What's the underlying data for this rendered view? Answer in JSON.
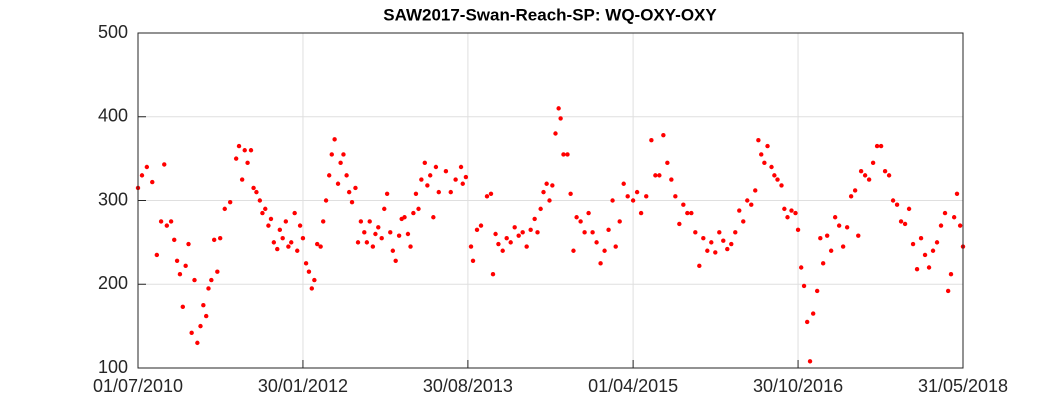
{
  "chart_data": {
    "type": "scatter",
    "title": "SAW2017-Swan-Reach-SP: WQ-OXY-OXY",
    "color": "#ff0000",
    "grid": true,
    "xlim": [
      "01/07/2010",
      "31/05/2018"
    ],
    "xticks": [
      "01/07/2010",
      "30/01/2012",
      "30/08/2013",
      "01/04/2015",
      "30/10/2016",
      "31/05/2018"
    ],
    "ylim": [
      100,
      500
    ],
    "yticks": [
      100,
      200,
      300,
      400,
      500
    ],
    "x": [
      "01/07/2010",
      "15/07/2010",
      "01/08/2010",
      "20/08/2010",
      "05/09/2010",
      "20/09/2010",
      "01/10/2010",
      "10/10/2010",
      "25/10/2010",
      "05/11/2010",
      "15/11/2010",
      "25/11/2010",
      "05/12/2010",
      "15/12/2010",
      "25/12/2010",
      "05/01/2011",
      "15/01/2011",
      "25/01/2011",
      "05/02/2011",
      "15/02/2011",
      "25/02/2011",
      "05/03/2011",
      "15/03/2011",
      "25/03/2011",
      "05/04/2011",
      "15/04/2011",
      "01/05/2011",
      "20/05/2011",
      "10/06/2011",
      "20/06/2011",
      "01/07/2011",
      "10/07/2011",
      "20/07/2011",
      "01/08/2011",
      "10/08/2011",
      "20/08/2011",
      "01/09/2011",
      "10/09/2011",
      "20/09/2011",
      "01/10/2011",
      "10/10/2011",
      "20/10/2011",
      "01/11/2011",
      "10/11/2011",
      "20/11/2011",
      "01/12/2011",
      "10/12/2011",
      "20/12/2011",
      "01/01/2012",
      "10/01/2012",
      "20/01/2012",
      "30/01/2012",
      "10/02/2012",
      "20/02/2012",
      "01/03/2012",
      "10/03/2012",
      "20/03/2012",
      "01/04/2012",
      "10/04/2012",
      "20/04/2012",
      "01/05/2012",
      "10/05/2012",
      "20/05/2012",
      "01/06/2012",
      "10/06/2012",
      "20/06/2012",
      "01/07/2012",
      "10/07/2012",
      "20/07/2012",
      "01/08/2012",
      "10/08/2012",
      "20/08/2012",
      "01/09/2012",
      "10/09/2012",
      "20/09/2012",
      "01/10/2012",
      "10/10/2012",
      "20/10/2012",
      "01/11/2012",
      "10/11/2012",
      "20/11/2012",
      "01/12/2012",
      "10/12/2012",
      "20/12/2012",
      "01/01/2013",
      "10/01/2013",
      "20/01/2013",
      "01/02/2013",
      "10/02/2013",
      "20/02/2013",
      "01/03/2013",
      "10/03/2013",
      "20/03/2013",
      "01/04/2013",
      "10/04/2013",
      "20/04/2013",
      "01/05/2013",
      "10/05/2013",
      "20/05/2013",
      "14/06/2013",
      "01/07/2013",
      "18/07/2013",
      "06/08/2013",
      "12/08/2013",
      "23/08/2013",
      "10/09/2013",
      "17/09/2013",
      "01/10/2013",
      "15/10/2013",
      "05/11/2013",
      "19/11/2013",
      "26/11/2013",
      "05/12/2013",
      "15/12/2013",
      "30/12/2013",
      "13/01/2014",
      "27/01/2014",
      "10/02/2014",
      "24/02/2014",
      "10/03/2014",
      "24/03/2014",
      "07/04/2014",
      "21/04/2014",
      "01/05/2014",
      "12/05/2014",
      "22/05/2014",
      "02/06/2014",
      "12/06/2014",
      "22/06/2014",
      "03/07/2014",
      "14/07/2014",
      "21/07/2014",
      "31/07/2014",
      "14/08/2014",
      "25/08/2014",
      "04/09/2014",
      "15/09/2014",
      "29/09/2014",
      "13/10/2014",
      "27/10/2014",
      "10/11/2014",
      "24/11/2014",
      "08/12/2014",
      "22/12/2014",
      "05/01/2015",
      "19/01/2015",
      "30/01/2015",
      "13/02/2015",
      "27/02/2015",
      "13/03/2015",
      "01/04/2015",
      "15/04/2015",
      "29/04/2015",
      "17/05/2015",
      "04/06/2015",
      "18/06/2015",
      "02/07/2015",
      "16/07/2015",
      "30/07/2015",
      "13/08/2015",
      "27/08/2015",
      "10/09/2015",
      "24/09/2015",
      "08/10/2015",
      "22/10/2015",
      "05/11/2015",
      "19/11/2015",
      "03/12/2015",
      "17/12/2015",
      "31/12/2015",
      "14/01/2016",
      "28/01/2016",
      "11/02/2016",
      "25/02/2016",
      "10/03/2016",
      "24/03/2016",
      "07/04/2016",
      "21/04/2016",
      "05/05/2016",
      "19/05/2016",
      "02/06/2016",
      "13/06/2016",
      "23/06/2016",
      "04/07/2016",
      "15/07/2016",
      "29/07/2016",
      "08/08/2016",
      "19/08/2016",
      "02/09/2016",
      "12/09/2016",
      "23/09/2016",
      "07/10/2016",
      "21/10/2016",
      "30/10/2016",
      "10/11/2016",
      "20/11/2016",
      "01/12/2016",
      "11/12/2016",
      "22/12/2016",
      "05/01/2017",
      "16/01/2017",
      "26/01/2017",
      "09/02/2017",
      "23/02/2017",
      "09/03/2017",
      "23/03/2017",
      "06/04/2017",
      "20/04/2017",
      "04/05/2017",
      "18/05/2017",
      "29/05/2017",
      "08/06/2017",
      "22/06/2017",
      "06/07/2017",
      "20/07/2017",
      "03/08/2017",
      "17/08/2017",
      "31/08/2017",
      "14/09/2017",
      "28/09/2017",
      "12/10/2017",
      "26/10/2017",
      "09/11/2017",
      "23/11/2017",
      "07/12/2017",
      "21/12/2017",
      "04/01/2018",
      "18/01/2018",
      "01/02/2018",
      "15/02/2018",
      "01/03/2018",
      "15/03/2018",
      "29/03/2018",
      "09/04/2018",
      "19/04/2018",
      "30/04/2018",
      "10/05/2018",
      "21/05/2018",
      "31/05/2018"
    ],
    "values": [
      315,
      330,
      340,
      322,
      235,
      275,
      343,
      270,
      275,
      253,
      228,
      212,
      173,
      222,
      248,
      142,
      205,
      130,
      150,
      175,
      162,
      195,
      205,
      253,
      215,
      255,
      290,
      298,
      350,
      365,
      325,
      360,
      345,
      360,
      315,
      310,
      300,
      285,
      290,
      270,
      278,
      250,
      242,
      265,
      255,
      275,
      245,
      250,
      285,
      240,
      270,
      255,
      225,
      215,
      195,
      205,
      248,
      245,
      275,
      300,
      330,
      355,
      373,
      320,
      345,
      355,
      330,
      310,
      298,
      315,
      250,
      275,
      262,
      250,
      275,
      245,
      260,
      268,
      255,
      290,
      308,
      262,
      240,
      228,
      258,
      278,
      280,
      260,
      245,
      285,
      308,
      290,
      325,
      345,
      318,
      330,
      280,
      340,
      310,
      335,
      310,
      325,
      340,
      320,
      328,
      245,
      228,
      265,
      270,
      305,
      308,
      212,
      260,
      248,
      240,
      255,
      250,
      268,
      258,
      262,
      245,
      265,
      278,
      262,
      290,
      310,
      320,
      300,
      318,
      380,
      410,
      398,
      355,
      355,
      308,
      240,
      280,
      275,
      262,
      285,
      262,
      250,
      225,
      240,
      265,
      300,
      245,
      275,
      320,
      305,
      300,
      310,
      285,
      305,
      372,
      330,
      330,
      378,
      345,
      325,
      305,
      272,
      295,
      285,
      285,
      262,
      222,
      255,
      240,
      250,
      238,
      262,
      252,
      242,
      248,
      262,
      288,
      275,
      300,
      295,
      312,
      372,
      355,
      345,
      365,
      340,
      330,
      325,
      318,
      290,
      280,
      288,
      285,
      265,
      220,
      198,
      155,
      108,
      165,
      192,
      255,
      225,
      258,
      240,
      280,
      270,
      245,
      268,
      305,
      312,
      258,
      335,
      330,
      325,
      345,
      365,
      365,
      335,
      330,
      300,
      295,
      275,
      272,
      290,
      248,
      218,
      255,
      235,
      220,
      240,
      250,
      270,
      285,
      192,
      212,
      280,
      308,
      270,
      245
    ]
  }
}
